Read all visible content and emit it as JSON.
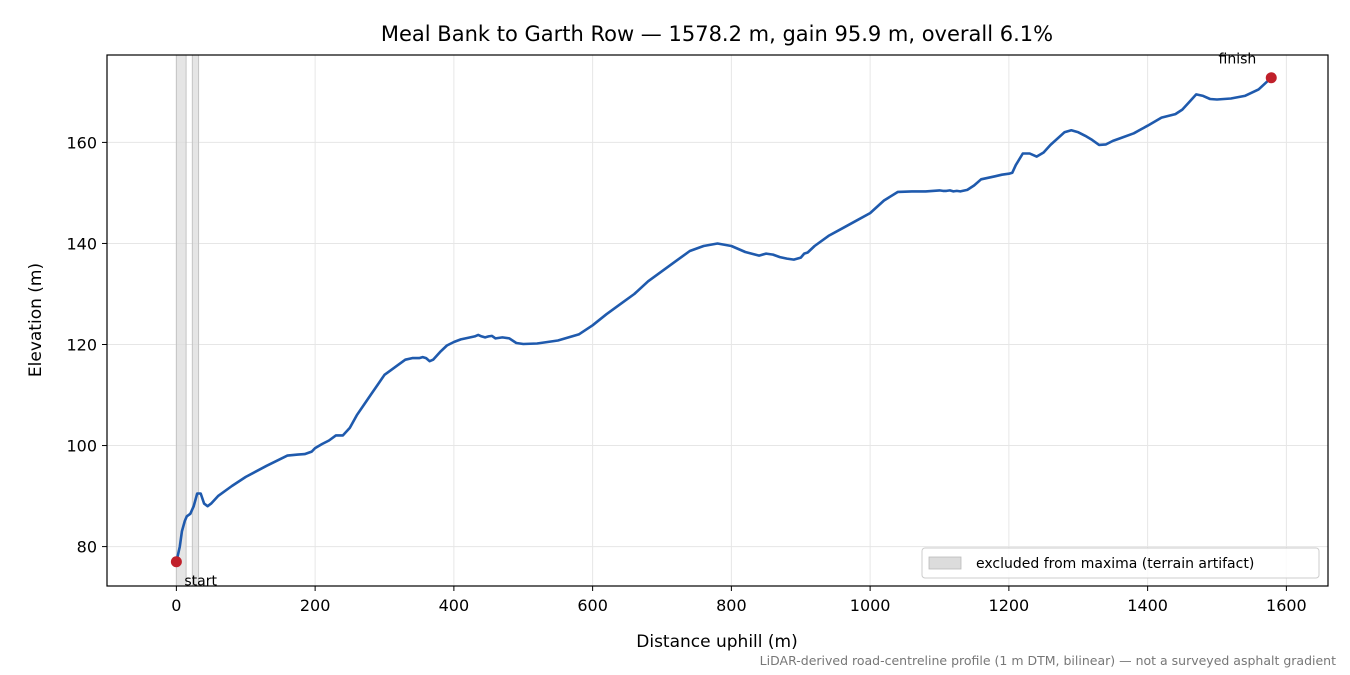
{
  "chart_data": {
    "type": "line",
    "title": "Meal Bank to Garth Row — 1578.2 m, gain 95.9 m, overall 6.1%",
    "xlabel": "Distance uphill (m)",
    "ylabel": "Elevation (m)",
    "xlim": [
      -100,
      1660
    ],
    "ylim": [
      72.2,
      177.3
    ],
    "xticks": [
      0,
      200,
      400,
      600,
      800,
      1000,
      1200,
      1400,
      1600
    ],
    "yticks": [
      80,
      100,
      120,
      140,
      160
    ],
    "grid": true,
    "legend_position": "lower-right",
    "legend": [
      {
        "label": "excluded from maxima (terrain artifact)",
        "color": "#dcdcdc"
      }
    ],
    "excluded_ranges": [
      [
        0,
        14
      ],
      [
        23,
        32
      ]
    ],
    "series": [
      {
        "color": "#1f5aad",
        "x": [
          0,
          5,
          8,
          12,
          15,
          20,
          25,
          30,
          35,
          40,
          45,
          50,
          60,
          80,
          100,
          130,
          160,
          175,
          185,
          195,
          200,
          210,
          220,
          230,
          240,
          250,
          260,
          270,
          280,
          290,
          300,
          310,
          320,
          330,
          340,
          350,
          355,
          360,
          365,
          370,
          380,
          390,
          400,
          410,
          420,
          430,
          435,
          440,
          445,
          450,
          455,
          460,
          470,
          480,
          490,
          500,
          520,
          550,
          580,
          600,
          620,
          640,
          660,
          680,
          700,
          720,
          740,
          760,
          780,
          800,
          820,
          840,
          850,
          860,
          870,
          880,
          890,
          900,
          905,
          910,
          920,
          940,
          960,
          980,
          1000,
          1020,
          1040,
          1060,
          1080,
          1100,
          1105,
          1110,
          1115,
          1120,
          1125,
          1130,
          1140,
          1150,
          1160,
          1180,
          1190,
          1200,
          1205,
          1210,
          1220,
          1230,
          1240,
          1250,
          1260,
          1280,
          1290,
          1300,
          1310,
          1320,
          1330,
          1340,
          1350,
          1360,
          1380,
          1400,
          1420,
          1440,
          1450,
          1460,
          1470,
          1480,
          1490,
          1500,
          1520,
          1540,
          1560,
          1578.2
        ],
        "y": [
          77.0,
          80.0,
          83.0,
          85.0,
          86.0,
          86.5,
          88.0,
          90.5,
          90.5,
          88.5,
          88.0,
          88.5,
          90.0,
          92.0,
          93.8,
          96.0,
          98.0,
          98.2,
          98.3,
          98.8,
          99.5,
          100.3,
          101.0,
          102.0,
          102.0,
          103.5,
          106.0,
          108.0,
          110.0,
          112.0,
          114.0,
          115.0,
          116.0,
          117.0,
          117.3,
          117.3,
          117.5,
          117.3,
          116.7,
          117.0,
          118.5,
          119.8,
          120.5,
          121.0,
          121.3,
          121.6,
          121.9,
          121.6,
          121.4,
          121.6,
          121.7,
          121.2,
          121.4,
          121.2,
          120.3,
          120.1,
          120.2,
          120.8,
          122.0,
          123.8,
          126.0,
          128.0,
          130.0,
          132.5,
          134.5,
          136.5,
          138.5,
          139.5,
          140.0,
          139.5,
          138.3,
          137.6,
          138.0,
          137.8,
          137.3,
          137.0,
          136.8,
          137.2,
          138.0,
          138.2,
          139.5,
          141.5,
          143.0,
          144.5,
          146.0,
          148.5,
          150.2,
          150.3,
          150.3,
          150.5,
          150.4,
          150.4,
          150.5,
          150.3,
          150.4,
          150.3,
          150.6,
          151.5,
          152.7,
          153.3,
          153.6,
          153.8,
          154.0,
          155.5,
          157.8,
          157.8,
          157.2,
          158.0,
          159.5,
          162.0,
          162.4,
          162.0,
          161.3,
          160.5,
          159.5,
          159.6,
          160.3,
          160.8,
          161.8,
          163.3,
          164.9,
          165.6,
          166.5,
          168.0,
          169.5,
          169.2,
          168.6,
          168.5,
          168.7,
          169.2,
          170.5,
          172.8
        ]
      }
    ],
    "points": [
      {
        "label": "start",
        "x": 0,
        "y": 77.0,
        "color": "#c0202a"
      },
      {
        "label": "finish",
        "x": 1578.2,
        "y": 172.8,
        "color": "#c0202a"
      }
    ],
    "footnote": "LiDAR-derived road-centreline profile (1 m DTM, bilinear) — not a surveyed asphalt gradient"
  }
}
